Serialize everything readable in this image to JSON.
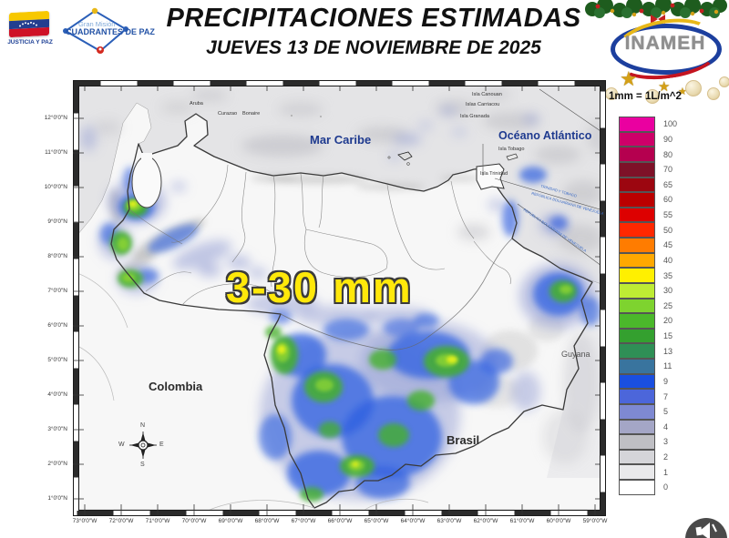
{
  "header": {
    "title": "PRECIPITACIONES ESTIMADAS",
    "date_line": "JUEVES 13 DE NOVIEMBRE  DE 2025",
    "justicia_label": "JUSTICIA Y PAZ",
    "mision_line1": "Gran Misión",
    "mision_line2": "CUADRANTES DE PAZ",
    "inameh_label": "INAMEH"
  },
  "legend": {
    "title": "1mm = 1L/m^2",
    "entries": [
      {
        "value": "100",
        "color": "#EA00A0"
      },
      {
        "value": "90",
        "color": "#CE0069"
      },
      {
        "value": "80",
        "color": "#B5004F"
      },
      {
        "value": "70",
        "color": "#7E1128"
      },
      {
        "value": "65",
        "color": "#9C0610"
      },
      {
        "value": "60",
        "color": "#BB0000"
      },
      {
        "value": "55",
        "color": "#DD0000"
      },
      {
        "value": "50",
        "color": "#FF2800"
      },
      {
        "value": "45",
        "color": "#FF7C00"
      },
      {
        "value": "40",
        "color": "#FFA800"
      },
      {
        "value": "35",
        "color": "#FFF000"
      },
      {
        "value": "30",
        "color": "#BEEC34"
      },
      {
        "value": "25",
        "color": "#7ED32F"
      },
      {
        "value": "20",
        "color": "#4BB82B"
      },
      {
        "value": "15",
        "color": "#34A02F"
      },
      {
        "value": "13",
        "color": "#2F8F56"
      },
      {
        "value": "11",
        "color": "#39749E"
      },
      {
        "value": "9",
        "color": "#1A4FE0"
      },
      {
        "value": "7",
        "color": "#4C66DA"
      },
      {
        "value": "5",
        "color": "#7E89D2"
      },
      {
        "value": "4",
        "color": "#A4A6C6"
      },
      {
        "value": "3",
        "color": "#BFBFC4"
      },
      {
        "value": "2",
        "color": "#D5D5D9"
      },
      {
        "value": "1",
        "color": "#E9E9EB"
      },
      {
        "value": "0",
        "color": "#FFFFFF"
      }
    ]
  },
  "map": {
    "annotation": "3-30 mm",
    "sea_labels": {
      "caribbean": "Mar Caribe",
      "atlantic": "Océano Atlántico"
    },
    "countries": {
      "colombia": "Colombia",
      "brasil": "Brasil",
      "guyana": "Guyana"
    },
    "islands": [
      "Aruba",
      "Curazao",
      "Bonaire",
      "Isla Canouan",
      "Islas Carriacou",
      "Isla Granada",
      "Isla Tobago",
      "Isla Trinidad"
    ],
    "boundaries": [
      "TRINIDAD Y TOBAGO",
      "REPÚBLICA BOLIVARIANA DE VENEZUELA",
      "REPÚBLICA BOLIVARIANA DE VENEZUELA"
    ],
    "compass": {
      "n": "N",
      "e": "E",
      "s": "S",
      "w": "W"
    },
    "lat_labels": [
      "12°0'0\"N",
      "11°0'0\"N",
      "10°0'0\"N",
      "9°0'0\"N",
      "8°0'0\"N",
      "7°0'0\"N",
      "6°0'0\"N",
      "5°0'0\"N",
      "4°0'0\"N",
      "3°0'0\"N",
      "2°0'0\"N",
      "1°0'0\"N"
    ],
    "lon_labels": [
      "73°0'0\"W",
      "72°0'0\"W",
      "71°0'0\"W",
      "70°0'0\"W",
      "69°0'0\"W",
      "68°0'0\"W",
      "67°0'0\"W",
      "66°0'0\"W",
      "65°0'0\"W",
      "64°0'0\"W",
      "63°0'0\"W",
      "62°0'0\"W",
      "61°0'0\"W",
      "60°0'0\"W",
      "59°0'0\"W"
    ]
  }
}
